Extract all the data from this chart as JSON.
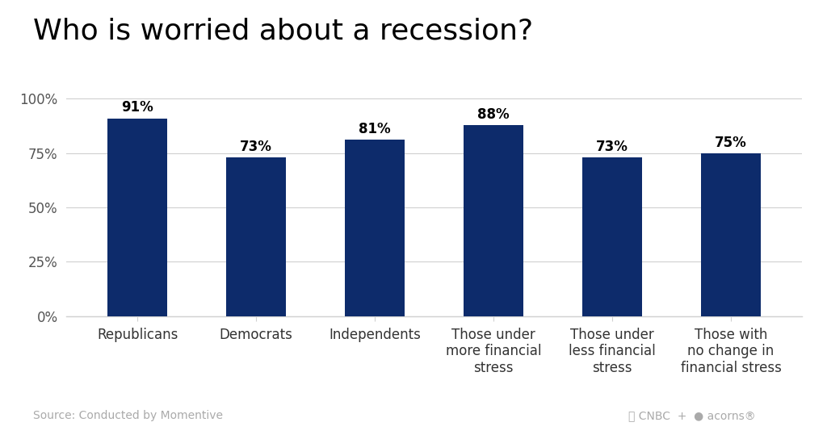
{
  "title": "Who is worried about a recession?",
  "categories": [
    "Republicans",
    "Democrats",
    "Independents",
    "Those under\nmore financial\nstress",
    "Those under\nless financial\nstress",
    "Those with\nno change in\nfinancial stress"
  ],
  "values": [
    91,
    73,
    81,
    88,
    73,
    75
  ],
  "bar_color": "#0d2b6b",
  "background_color": "#ffffff",
  "ylim": [
    0,
    105
  ],
  "yticks": [
    0,
    25,
    50,
    75,
    100
  ],
  "ytick_labels": [
    "0%",
    "25%",
    "50%",
    "75%",
    "100%"
  ],
  "source_text": "Source: Conducted by Momentive",
  "title_fontsize": 26,
  "label_fontsize": 12,
  "tick_fontsize": 12,
  "value_fontsize": 12,
  "source_fontsize": 10,
  "grid_color": "#d0d0d0",
  "bar_width": 0.5
}
